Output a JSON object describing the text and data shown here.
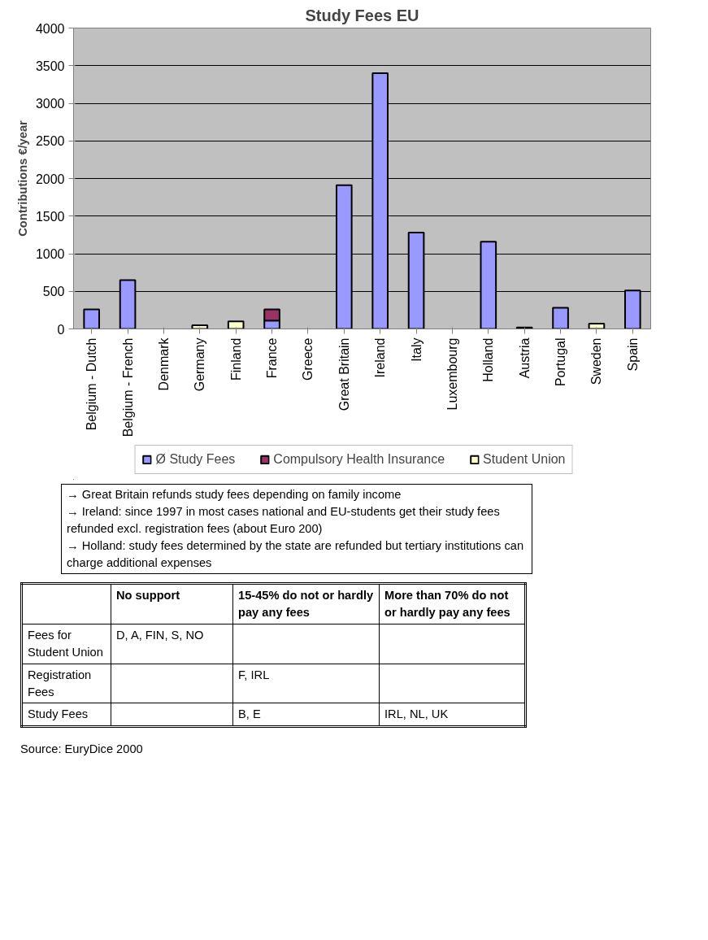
{
  "chart_data": {
    "type": "bar",
    "title": "Study Fees EU",
    "ylabel": "Contributions €/year",
    "stacked": true,
    "categories": [
      "Belgium - Dutch",
      "Belgium - French",
      "Denmark",
      "Germany",
      "Finland",
      "France",
      "Greece",
      "Great Britain",
      "Ireland",
      "Italy",
      "Luxembourg",
      "Holland",
      "Austria",
      "Portugal",
      "Sweden",
      "Spain"
    ],
    "series": [
      {
        "name": "Ø Study Fees",
        "color": "#9999ff",
        "values": [
          260,
          650,
          null,
          null,
          null,
          110,
          null,
          1910,
          3400,
          1280,
          null,
          1160,
          null,
          280,
          null,
          510
        ]
      },
      {
        "name": "Compulsory Health Insurance",
        "color": "#993366",
        "values": [
          null,
          null,
          null,
          null,
          null,
          150,
          null,
          null,
          null,
          null,
          null,
          null,
          null,
          null,
          null,
          null
        ]
      },
      {
        "name": "Student Union",
        "color": "#ffffcc",
        "values": [
          null,
          null,
          null,
          50,
          100,
          null,
          null,
          null,
          null,
          null,
          null,
          null,
          20,
          null,
          70,
          null
        ]
      }
    ],
    "ylim": [
      0,
      4000
    ],
    "yticks": [
      0,
      500,
      1000,
      1500,
      2000,
      2500,
      3000,
      3500,
      4000
    ],
    "grid": "y",
    "legend": "bottom",
    "annotations": [
      "→ Great Britain refunds study fees depending on family income",
      "→ Ireland: since 1997 in most cases national and EU-students get their study fees refunded excl. registration fees (about Euro 200)",
      "→ Holland: study fees determined by the state are refunded but tertiary institutions can charge additional expenses",
      "No support",
      "15-45% do not or hardly pay any fees",
      "More than 70% do not or hardly pay any fees",
      "Fees for Student Union",
      "D, A, FIN, S, NO",
      "Registration Fees",
      "F, IRL",
      "Study Fees",
      "B, E",
      "IRL, NL, UK",
      "Source: EuryDice 2000"
    ]
  }
}
